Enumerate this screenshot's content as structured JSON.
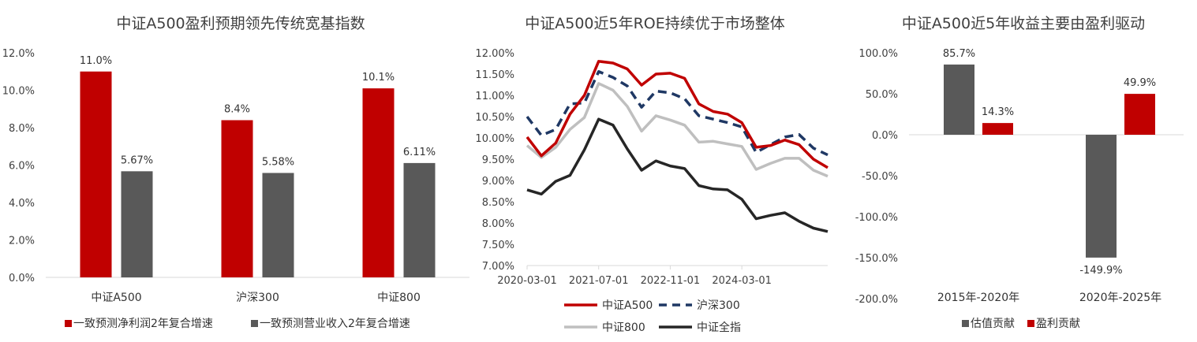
{
  "chart_data": [
    {
      "type": "bar",
      "title": "中证A500盈利预期领先传统宽基指数",
      "categories": [
        "中证A500",
        "沪深300",
        "中证800"
      ],
      "series": [
        {
          "name": "一致预测净利润2年复合增速",
          "color": "#C00000",
          "values": [
            11.0,
            8.4,
            10.1
          ],
          "labels": [
            "11.0%",
            "8.4%",
            "10.1%"
          ]
        },
        {
          "name": "一致预测营业收入2年复合增速",
          "color": "#595959",
          "values": [
            5.67,
            5.58,
            6.11
          ],
          "labels": [
            "5.67%",
            "5.58%",
            "6.11%"
          ]
        }
      ],
      "ylim": [
        0,
        12
      ],
      "yticks": [
        0,
        2,
        4,
        6,
        8,
        10,
        12
      ],
      "ytick_labels": [
        "0.0%",
        "2.0%",
        "4.0%",
        "6.0%",
        "8.0%",
        "10.0%",
        "12.0%"
      ],
      "grid": false,
      "legend": "bottom"
    },
    {
      "type": "line",
      "title": "中证A500近5年ROE持续优于市场整体",
      "x": [
        "2020-03",
        "2020-06",
        "2020-09",
        "2020-12",
        "2021-03",
        "2021-06",
        "2021-09",
        "2021-12",
        "2022-03",
        "2022-06",
        "2022-09",
        "2022-12",
        "2023-03",
        "2023-06",
        "2023-09",
        "2023-12",
        "2024-03",
        "2024-06",
        "2024-09",
        "2024-12",
        "2025-03",
        "2025-06"
      ],
      "xtick_labels": [
        "2020-03-01",
        "2021-07-01",
        "2022-11-01",
        "2024-03-01"
      ],
      "xtick_positions": [
        0,
        5,
        10,
        15
      ],
      "series": [
        {
          "name": "中证A500",
          "color": "#C00000",
          "style": "solid",
          "values": [
            10.02,
            9.58,
            9.88,
            10.56,
            11.0,
            11.8,
            11.76,
            11.62,
            11.24,
            11.5,
            11.52,
            11.4,
            10.8,
            10.62,
            10.56,
            10.36,
            9.78,
            9.82,
            9.95,
            9.84,
            9.5,
            9.3
          ]
        },
        {
          "name": "沪深300",
          "color": "#1F3864",
          "style": "dashed",
          "values": [
            10.5,
            10.06,
            10.2,
            10.8,
            10.82,
            11.56,
            11.42,
            11.22,
            10.72,
            11.1,
            11.06,
            10.92,
            10.52,
            10.44,
            10.36,
            10.26,
            9.66,
            9.84,
            10.02,
            10.08,
            9.76,
            9.6
          ]
        },
        {
          "name": "中证800",
          "color": "#BFBFBF",
          "style": "solid",
          "values": [
            9.82,
            9.54,
            9.78,
            10.2,
            10.48,
            11.28,
            11.12,
            10.74,
            10.16,
            10.52,
            10.42,
            10.3,
            9.9,
            9.92,
            9.86,
            9.8,
            9.26,
            9.4,
            9.52,
            9.52,
            9.24,
            9.1
          ]
        },
        {
          "name": "中证全指",
          "color": "#262626",
          "style": "solid",
          "values": [
            8.78,
            8.68,
            8.98,
            9.12,
            9.72,
            10.44,
            10.3,
            9.74,
            9.24,
            9.46,
            9.34,
            9.28,
            8.88,
            8.8,
            8.78,
            8.56,
            8.1,
            8.18,
            8.24,
            8.04,
            7.88,
            7.8
          ]
        }
      ],
      "ylim": [
        7.0,
        12.0
      ],
      "yticks": [
        7.0,
        7.5,
        8.0,
        8.5,
        9.0,
        9.5,
        10.0,
        10.5,
        11.0,
        11.5,
        12.0
      ],
      "ytick_labels": [
        "7.00%",
        "7.50%",
        "8.00%",
        "8.50%",
        "9.00%",
        "9.50%",
        "10.00%",
        "10.50%",
        "11.00%",
        "11.50%",
        "12.00%"
      ],
      "grid": false,
      "legend": "bottom"
    },
    {
      "type": "bar",
      "title": "中证A500近5年收益主要由盈利驱动",
      "categories": [
        "2015年-2020年",
        "2020年-2025年"
      ],
      "series": [
        {
          "name": "估值贡献",
          "color": "#595959",
          "values": [
            85.7,
            -149.9
          ],
          "labels": [
            "85.7%",
            "-149.9%"
          ]
        },
        {
          "name": "盈利贡献",
          "color": "#C00000",
          "values": [
            14.3,
            49.9
          ],
          "labels": [
            "14.3%",
            "49.9%"
          ]
        }
      ],
      "ylim": [
        -200,
        100
      ],
      "yticks": [
        -200,
        -150,
        -100,
        -50,
        0,
        50,
        100
      ],
      "ytick_labels": [
        "-200.0%",
        "-150.0%",
        "-100.0%",
        "-50.0%",
        "0.0%",
        "50.0%",
        "100.0%"
      ],
      "grid": false,
      "legend": "bottom"
    }
  ]
}
